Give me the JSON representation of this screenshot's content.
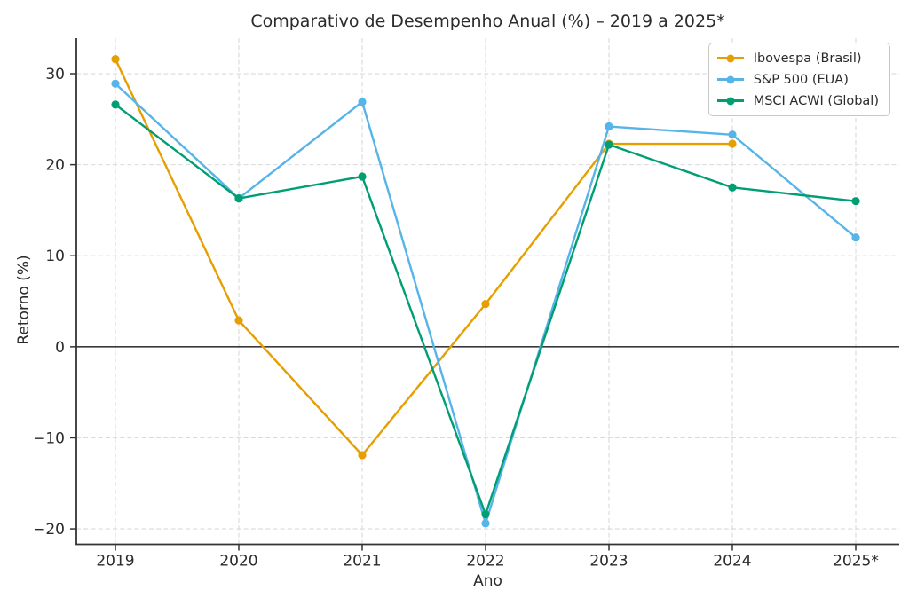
{
  "chart_data": {
    "type": "line",
    "title": "Comparativo de Desempenho Anual (%) – 2019 a 2025*",
    "xlabel": "Ano",
    "ylabel": "Retorno (%)",
    "categories": [
      "2019",
      "2020",
      "2021",
      "2022",
      "2023",
      "2024",
      "2025*"
    ],
    "series": [
      {
        "name": "Ibovespa (Brasil)",
        "color": "#E69F00",
        "values": [
          31.6,
          2.9,
          -11.9,
          4.7,
          22.3,
          22.3,
          null
        ]
      },
      {
        "name": "S&P 500 (EUA)",
        "color": "#56B4E9",
        "values": [
          28.9,
          16.3,
          26.9,
          -19.4,
          24.2,
          23.3,
          12.0
        ]
      },
      {
        "name": "MSCI ACWI (Global)",
        "color": "#009E73",
        "values": [
          26.6,
          16.3,
          18.7,
          -18.4,
          22.2,
          17.5,
          16.0
        ]
      }
    ],
    "yticks": [
      30,
      20,
      10,
      0,
      -10,
      -20
    ],
    "ytick_labels": [
      "30",
      "20",
      "10",
      "0",
      "−10",
      "−20"
    ],
    "ylim": [
      -21.7,
      33.9
    ],
    "grid": "dashed-both-axes",
    "zero_line": true,
    "legend_position": "upper-right",
    "colors": {
      "grid": "#d9d9d9",
      "spine": "#333333",
      "zero_line": "#3a3a3a",
      "text": "#2b2b2b"
    }
  }
}
